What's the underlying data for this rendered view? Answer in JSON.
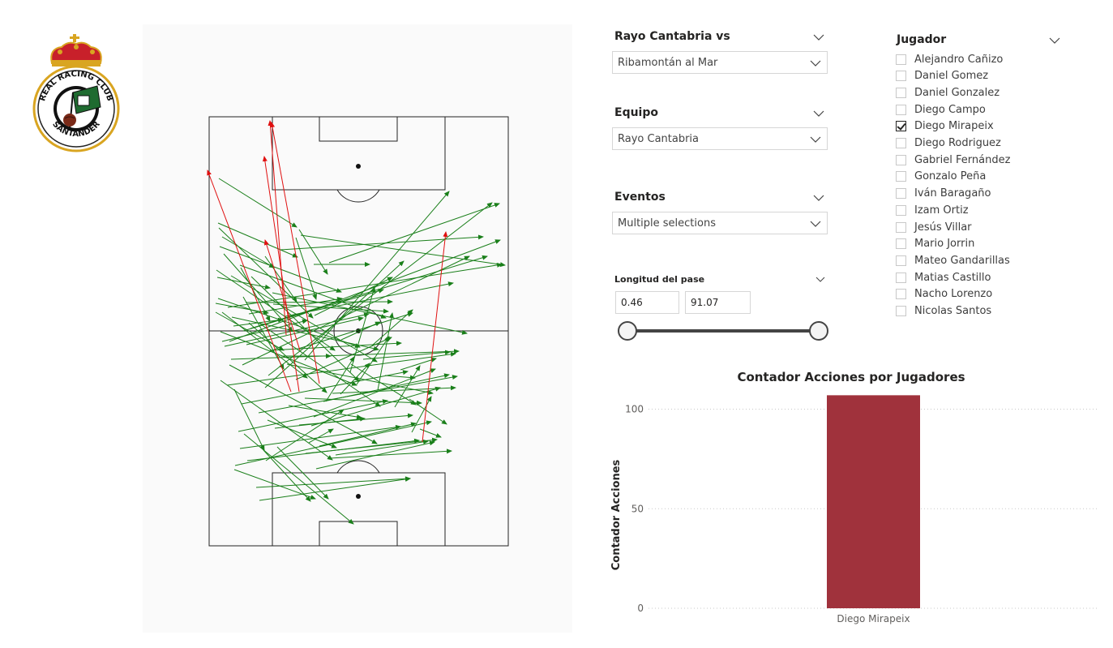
{
  "logo": {
    "text_top": "REAL RACING CLUB",
    "text_bottom": "SANTANDER"
  },
  "slicers": {
    "rival": {
      "title": "Rayo Cantabria vs",
      "value": "Ribamontán al Mar"
    },
    "equipo": {
      "title": "Equipo",
      "value": "Rayo Cantabria"
    },
    "eventos": {
      "title": "Eventos",
      "value": "Multiple selections"
    },
    "longitud": {
      "title": "Longitud del pase",
      "min": "0.46",
      "max": "91.07"
    }
  },
  "jugador": {
    "title": "Jugador",
    "players": [
      {
        "name": "Alejandro Cañizo",
        "checked": false
      },
      {
        "name": "Daniel Gomez",
        "checked": false
      },
      {
        "name": "Daniel Gonzalez",
        "checked": false
      },
      {
        "name": "Diego Campo",
        "checked": false
      },
      {
        "name": "Diego Mirapeix",
        "checked": true
      },
      {
        "name": "Diego Rodriguez",
        "checked": false
      },
      {
        "name": "Gabriel Fernández",
        "checked": false
      },
      {
        "name": "Gonzalo Peña",
        "checked": false
      },
      {
        "name": "Iván Baragaño",
        "checked": false
      },
      {
        "name": "Izam Ortiz",
        "checked": false
      },
      {
        "name": "Jesús Villar",
        "checked": false
      },
      {
        "name": "Mario Jorrin",
        "checked": false
      },
      {
        "name": "Mateo Gandarillas",
        "checked": false
      },
      {
        "name": "Matias Castillo",
        "checked": false
      },
      {
        "name": "Nacho Lorenzo",
        "checked": false
      },
      {
        "name": "Nicolas Santos",
        "checked": false
      }
    ]
  },
  "colors": {
    "pass_ok": "#1a7f1a",
    "pass_fail": "#e01010",
    "bar": "#a0323c",
    "logo_green": "#1f6b30",
    "logo_red": "#c8202a",
    "logo_gold": "#d9a521"
  },
  "chart_data": {
    "type": "bar",
    "title": "Contador Acciones por Jugadores",
    "ylabel": "Contador Acciones",
    "xlabel": "",
    "categories": [
      "Diego Mirapeix"
    ],
    "values": [
      107
    ],
    "ylim": [
      0,
      110
    ],
    "yticks": [
      0,
      50,
      100
    ],
    "grid": true
  }
}
